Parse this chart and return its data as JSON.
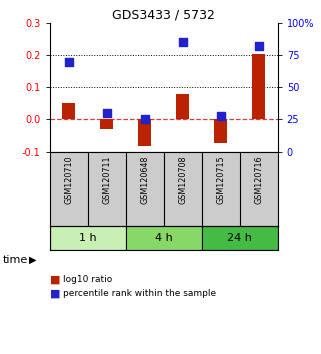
{
  "title": "GDS3433 / 5732",
  "samples": [
    "GSM120710",
    "GSM120711",
    "GSM120648",
    "GSM120708",
    "GSM120715",
    "GSM120716"
  ],
  "log10_ratio": [
    0.05,
    -0.03,
    -0.082,
    0.08,
    -0.075,
    0.202
  ],
  "percentile_rank": [
    70,
    30,
    25,
    85,
    28,
    82
  ],
  "time_groups": [
    {
      "label": "1 h",
      "start": 0,
      "end": 2,
      "color": "#c8f0b4"
    },
    {
      "label": "4 h",
      "start": 2,
      "end": 4,
      "color": "#88d868"
    },
    {
      "label": "24 h",
      "start": 4,
      "end": 6,
      "color": "#44bb44"
    }
  ],
  "left_ylim": [
    -0.1,
    0.3
  ],
  "right_ylim": [
    0,
    100
  ],
  "left_yticks": [
    -0.1,
    0.0,
    0.1,
    0.2,
    0.3
  ],
  "right_yticks": [
    0,
    25,
    50,
    75,
    100
  ],
  "right_yticklabels": [
    "0",
    "25",
    "50",
    "75",
    "100%"
  ],
  "dotted_lines": [
    0.1,
    0.2
  ],
  "dashed_zero_color": "#cc4444",
  "bar_color": "#bb2200",
  "dot_color": "#2222cc",
  "bar_width": 0.35,
  "dot_size": 30,
  "sample_box_color": "#cccccc",
  "bg_color": "#ffffff"
}
